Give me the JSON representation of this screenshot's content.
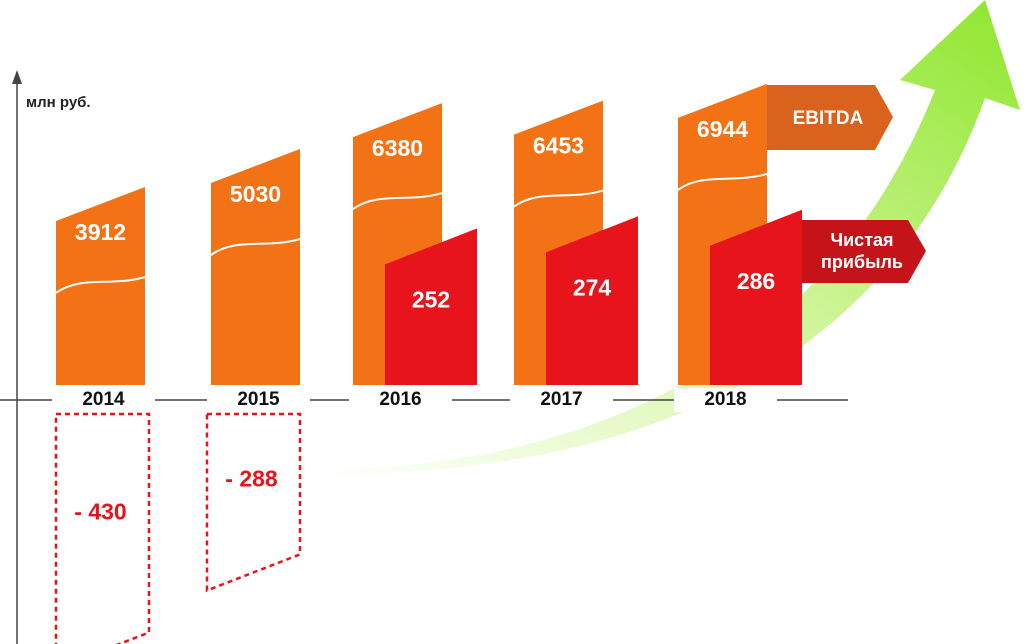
{
  "chart_data": {
    "type": "bar",
    "y_axis_label": "млн руб.",
    "categories": [
      "2014",
      "2015",
      "2016",
      "2017",
      "2018"
    ],
    "series": [
      {
        "name": "EBITDA",
        "color": "#f47216",
        "values": [
          3912,
          5030,
          6380,
          6453,
          6944
        ]
      },
      {
        "name": "Чистая прибыль",
        "color": "#e8141b",
        "values": [
          -430,
          -288,
          252,
          274,
          286
        ],
        "value_labels": [
          "- 430",
          "- 288",
          "252",
          "274",
          "286"
        ]
      }
    ]
  }
}
